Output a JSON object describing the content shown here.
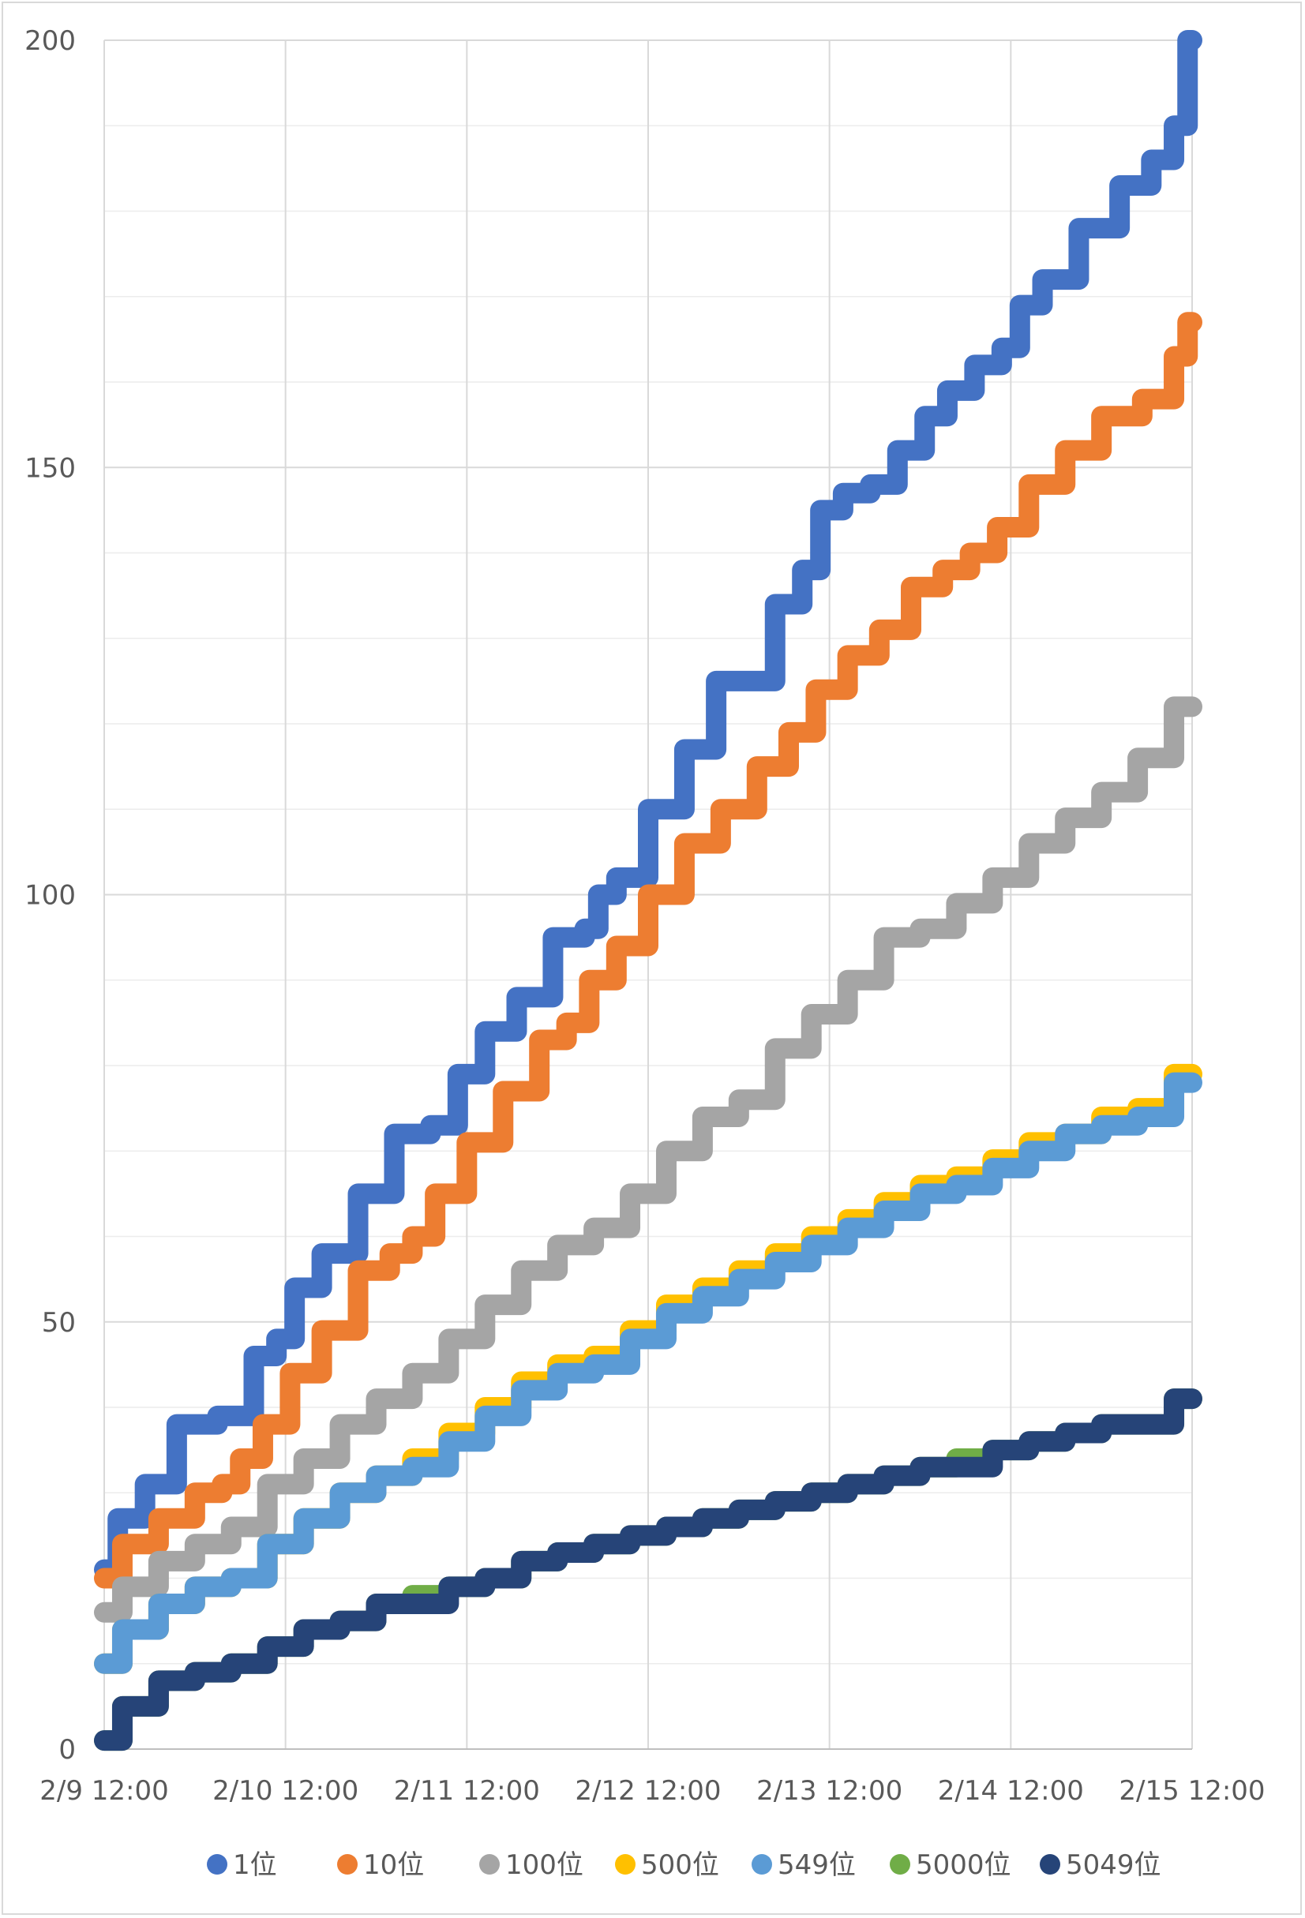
{
  "chart_data": {
    "type": "line",
    "title": "",
    "xlabel": "",
    "ylabel": "",
    "ylim": [
      0,
      200
    ],
    "y_ticks": [
      "0",
      "50",
      "100",
      "150",
      "200"
    ],
    "x_tick_labels": [
      "2/9 12:00",
      "2/10 12:00",
      "2/11 12:00",
      "2/12 12:00",
      "2/13 12:00",
      "2/14 12:00",
      "2/15 12:00"
    ],
    "xlim": [
      0,
      6
    ],
    "x_unit": "days since 2/9 12:00",
    "grid": true,
    "legend_position": "bottom",
    "series": [
      {
        "name": "1位",
        "color": "#4472C4",
        "x": [
          0,
          0.15,
          0.3,
          0.5,
          0.75,
          0.9,
          1.0,
          1.1,
          1.3,
          1.5,
          1.7,
          1.9,
          2.0,
          2.2,
          2.35,
          2.6,
          2.7,
          2.75,
          2.9,
          3.1,
          3.3,
          3.45,
          3.6,
          3.8,
          3.9,
          4.0,
          4.15,
          4.3,
          4.45,
          4.6,
          4.7,
          4.9,
          5.0,
          5.1,
          5.25,
          5.5,
          5.7,
          5.85,
          5.95,
          6.0
        ],
        "y": [
          21,
          27,
          31,
          38,
          39,
          46,
          48,
          54,
          58,
          65,
          72,
          73,
          79,
          84,
          88,
          95,
          96,
          100,
          102,
          110,
          117,
          125,
          125,
          134,
          138,
          145,
          147,
          148,
          152,
          156,
          159,
          162,
          164,
          169,
          172,
          178,
          183,
          186,
          190,
          200
        ]
      },
      {
        "name": "10位",
        "color": "#ED7D31",
        "x": [
          0,
          0.2,
          0.4,
          0.6,
          0.7,
          0.8,
          0.95,
          1.1,
          1.3,
          1.5,
          1.65,
          1.75,
          1.9,
          2.1,
          2.3,
          2.5,
          2.6,
          2.75,
          2.9,
          3.1,
          3.3,
          3.5,
          3.7,
          3.85,
          4.0,
          4.2,
          4.35,
          4.55,
          4.7,
          4.85,
          5.0,
          5.2,
          5.4,
          5.6,
          5.85,
          5.95,
          6.0
        ],
        "y": [
          20,
          24,
          27,
          30,
          31,
          34,
          38,
          44,
          49,
          56,
          58,
          60,
          65,
          71,
          77,
          83,
          85,
          90,
          94,
          100,
          106,
          110,
          115,
          119,
          124,
          128,
          131,
          136,
          138,
          140,
          143,
          148,
          152,
          156,
          158,
          163,
          167
        ]
      },
      {
        "name": "100位",
        "color": "#A5A5A5",
        "x": [
          0,
          0.2,
          0.4,
          0.6,
          0.8,
          1.0,
          1.2,
          1.4,
          1.6,
          1.8,
          2.0,
          2.2,
          2.4,
          2.6,
          2.8,
          3.0,
          3.2,
          3.4,
          3.6,
          3.8,
          4.0,
          4.2,
          4.4,
          4.6,
          4.8,
          5.0,
          5.2,
          5.4,
          5.6,
          5.8,
          6.0
        ],
        "y": [
          16,
          19,
          22,
          24,
          26,
          31,
          34,
          38,
          41,
          44,
          48,
          52,
          56,
          59,
          61,
          65,
          70,
          74,
          76,
          82,
          86,
          90,
          95,
          96,
          99,
          102,
          106,
          109,
          112,
          116,
          122
        ]
      },
      {
        "name": "500位",
        "color": "#FFC000",
        "x": [
          0,
          0.2,
          0.4,
          0.6,
          0.8,
          1.0,
          1.2,
          1.4,
          1.6,
          1.8,
          2.0,
          2.2,
          2.4,
          2.6,
          2.8,
          3.0,
          3.2,
          3.4,
          3.6,
          3.8,
          4.0,
          4.2,
          4.4,
          4.6,
          4.8,
          5.0,
          5.2,
          5.4,
          5.6,
          5.8,
          6.0
        ],
        "y": [
          10,
          14,
          17,
          19,
          20,
          24,
          27,
          30,
          32,
          34,
          37,
          40,
          43,
          45,
          46,
          49,
          52,
          54,
          56,
          58,
          60,
          62,
          64,
          66,
          67,
          69,
          71,
          72,
          74,
          75,
          79
        ]
      },
      {
        "name": "549位",
        "color": "#5B9BD5",
        "x": [
          0,
          0.2,
          0.4,
          0.6,
          0.8,
          1.0,
          1.2,
          1.4,
          1.6,
          1.8,
          2.0,
          2.2,
          2.4,
          2.6,
          2.8,
          3.0,
          3.2,
          3.4,
          3.6,
          3.8,
          4.0,
          4.2,
          4.4,
          4.6,
          4.8,
          5.0,
          5.2,
          5.4,
          5.6,
          5.8,
          6.0
        ],
        "y": [
          10,
          14,
          17,
          19,
          20,
          24,
          27,
          30,
          32,
          33,
          36,
          39,
          42,
          44,
          45,
          48,
          51,
          53,
          55,
          57,
          59,
          61,
          63,
          65,
          66,
          68,
          70,
          72,
          73,
          74,
          78
        ]
      },
      {
        "name": "5000位",
        "color": "#70AD47",
        "x": [
          0,
          0.2,
          0.4,
          0.6,
          0.8,
          1.0,
          1.2,
          1.4,
          1.6,
          1.8,
          2.0,
          2.2,
          2.4,
          2.6,
          2.8,
          3.0,
          3.2,
          3.4,
          3.6,
          3.8,
          4.0,
          4.2,
          4.4,
          4.6,
          4.8,
          5.0,
          5.2,
          5.4,
          5.6,
          5.8,
          6.0
        ],
        "y": [
          1,
          5,
          8,
          9,
          10,
          12,
          14,
          15,
          17,
          18,
          19,
          20,
          22,
          23,
          24,
          25,
          26,
          27,
          28,
          29,
          30,
          31,
          32,
          33,
          34,
          35,
          36,
          37,
          38,
          38,
          41
        ]
      },
      {
        "name": "5049位",
        "color": "#264478",
        "x": [
          0,
          0.2,
          0.4,
          0.6,
          0.8,
          1.0,
          1.2,
          1.4,
          1.6,
          1.8,
          2.0,
          2.2,
          2.4,
          2.6,
          2.8,
          3.0,
          3.2,
          3.4,
          3.6,
          3.8,
          4.0,
          4.2,
          4.4,
          4.6,
          4.8,
          5.0,
          5.2,
          5.4,
          5.6,
          5.8,
          6.0
        ],
        "y": [
          1,
          5,
          8,
          9,
          10,
          12,
          14,
          15,
          17,
          17,
          19,
          20,
          22,
          23,
          24,
          25,
          26,
          27,
          28,
          29,
          30,
          31,
          32,
          33,
          33,
          35,
          36,
          37,
          38,
          38,
          41
        ]
      }
    ]
  }
}
